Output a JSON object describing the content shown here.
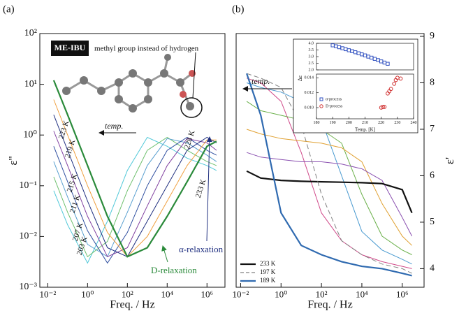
{
  "chart_data": [
    {
      "type": "line",
      "panel_label": "(a)",
      "ylabel": "ε''",
      "xlabel": "Freq. / Hz",
      "log_x": true,
      "log_y": true,
      "xlim": [
        0.004,
        8000000
      ],
      "ylim": [
        0.001,
        100
      ],
      "xticks": [
        {
          "value": 0.01,
          "label": "10⁻²"
        },
        {
          "value": 1,
          "label": "10⁰"
        },
        {
          "value": 100,
          "label": "10²"
        },
        {
          "value": 10000,
          "label": "10⁴"
        },
        {
          "value": 1000000,
          "label": "10⁶"
        }
      ],
      "yticks": [
        {
          "value": 0.001,
          "label": "10⁻³"
        },
        {
          "value": 0.01,
          "label": "10⁻²"
        },
        {
          "value": 0.1,
          "label": "10⁻¹"
        },
        {
          "value": 1,
          "label": "10⁰"
        },
        {
          "value": 10,
          "label": "10¹"
        },
        {
          "value": 100,
          "label": "10²"
        }
      ],
      "x": [
        0.02,
        0.1,
        1,
        10,
        100,
        1000,
        10000,
        100000,
        1000000,
        3000000
      ],
      "series": [
        {
          "name": "203 K",
          "color": "#4fc8d8",
          "values": [
            0.08,
            0.017,
            0.003,
            0.02,
            0.2,
            0.9,
            0.6,
            0.35,
            0.25,
            0.2
          ]
        },
        {
          "name": "207 K",
          "color": "#6fc06f",
          "values": [
            0.15,
            0.03,
            0.004,
            0.008,
            0.08,
            0.5,
            0.9,
            0.5,
            0.3,
            0.25
          ]
        },
        {
          "name": "211 K",
          "color": "#5aa0d0",
          "values": [
            0.3,
            0.06,
            0.007,
            0.004,
            0.03,
            0.25,
            0.85,
            0.7,
            0.4,
            0.3
          ]
        },
        {
          "name": "215 K",
          "color": "#3050a0",
          "values": [
            0.6,
            0.12,
            0.013,
            0.003,
            0.012,
            0.1,
            0.5,
            0.9,
            0.5,
            0.4
          ]
        },
        {
          "name": "219 K",
          "color": "#8040a0",
          "values": [
            1.2,
            0.25,
            0.025,
            0.004,
            0.006,
            0.04,
            0.25,
            0.85,
            0.7,
            0.5
          ]
        },
        {
          "name": "223 K",
          "color": "#203080",
          "values": [
            2.5,
            0.5,
            0.05,
            0.006,
            0.004,
            0.02,
            0.1,
            0.5,
            0.9,
            0.7
          ]
        },
        {
          "name": "228 K",
          "color": "#f0a040",
          "values": [
            5,
            1,
            0.1,
            0.012,
            0.004,
            0.01,
            0.05,
            0.25,
            0.8,
            0.8
          ]
        },
        {
          "name": "233 K",
          "color": "#2a8a3a",
          "thick": true,
          "values": [
            12,
            2.5,
            0.25,
            0.025,
            0.004,
            0.006,
            0.025,
            0.12,
            0.6,
            0.75
          ]
        }
      ],
      "annotations": {
        "sample": "ME-IBU",
        "molecule_note": "methyl group instead of hydrogen",
        "arrow_label": "temp.",
        "alpha": "α-relaxation",
        "d": "D-relaxation"
      }
    },
    {
      "type": "line",
      "panel_label": "(b)",
      "y2label": "ε'",
      "xlabel": "Freq. / Hz",
      "log_x": true,
      "xlim": [
        0.006,
        12000000
      ],
      "y2lim": [
        3.6,
        9.06
      ],
      "y2ticks": [
        4,
        5,
        6,
        7,
        8,
        9
      ],
      "xticks": [
        {
          "value": 0.01,
          "label": "10⁻²"
        },
        {
          "value": 1,
          "label": "10⁰"
        },
        {
          "value": 100,
          "label": "10²"
        },
        {
          "value": 10000,
          "label": "10⁴"
        },
        {
          "value": 1000000,
          "label": "10⁶"
        }
      ],
      "x": [
        0.02,
        0.1,
        1,
        10,
        100,
        1000,
        10000,
        100000,
        1000000,
        3000000
      ],
      "legend": "lower left",
      "arrow_label": "temp.",
      "series": [
        {
          "color": "#d04a8a",
          "axis": "y2",
          "values": [
            8.1,
            8.0,
            7.6,
            6.5,
            5.2,
            4.6,
            4.3,
            4.15,
            4.05,
            4.0
          ]
        },
        {
          "color": "#4a9ad0",
          "axis": "y2",
          "values": [
            8.0,
            7.9,
            7.8,
            7.6,
            7.2,
            6.0,
            4.8,
            4.4,
            4.2,
            4.1
          ]
        },
        {
          "color": "#6ab04a",
          "axis": "y2",
          "values": [
            7.6,
            7.4,
            7.3,
            7.2,
            7.0,
            6.7,
            5.6,
            4.7,
            4.4,
            4.3
          ]
        },
        {
          "color": "#e0a030",
          "axis": "y2",
          "values": [
            7.0,
            6.9,
            6.8,
            6.75,
            6.7,
            6.6,
            6.3,
            5.4,
            4.7,
            4.5
          ]
        },
        {
          "color": "#8a50b0",
          "axis": "y2",
          "values": [
            6.5,
            6.4,
            6.35,
            6.3,
            6.3,
            6.25,
            6.15,
            5.9,
            5.1,
            4.7
          ]
        },
        {
          "name": "233 K",
          "color": "#111111",
          "axis": "y2",
          "thick": true,
          "values": [
            6.1,
            5.95,
            5.9,
            5.88,
            5.87,
            5.86,
            5.85,
            5.83,
            5.7,
            5.2
          ]
        },
        {
          "name": "197 K",
          "color": "#808080",
          "axis": "y2",
          "dash": true,
          "values": [
            8.2,
            8.1,
            7.9,
            7.1,
            5.6,
            4.6,
            4.3,
            4.1,
            4.0,
            3.9
          ]
        },
        {
          "name": "189 K",
          "color": "#2f6ab0",
          "axis": "y2",
          "thick": true,
          "values": [
            8.2,
            7.3,
            5.2,
            4.5,
            4.3,
            4.15,
            4.05,
            4.0,
            3.9,
            3.85
          ]
        }
      ]
    },
    {
      "type": "scatter",
      "ylabel": "Δε",
      "xlim": [
        180,
        240
      ],
      "ylim": [
        2.0,
        4.0
      ],
      "yticks": [
        {
          "value": 2,
          "label": "2.0"
        },
        2.5,
        {
          "value": 3,
          "label": "3.0"
        },
        3.5,
        {
          "value": 4,
          "label": "4.0"
        }
      ],
      "series": [
        {
          "name": "α-process",
          "color": "#3050c0",
          "marker": "square",
          "x": [
            190,
            192,
            194,
            196,
            198,
            200,
            202,
            204,
            206,
            208,
            210,
            212,
            214,
            216,
            218,
            220,
            222,
            224
          ],
          "values": [
            3.85,
            3.78,
            3.71,
            3.63,
            3.56,
            3.48,
            3.41,
            3.33,
            3.25,
            3.17,
            3.09,
            3.0,
            2.92,
            2.83,
            2.74,
            2.64,
            2.55,
            2.46
          ]
        }
      ]
    },
    {
      "type": "scatter",
      "xlabel": "Temp. [K]",
      "xlim": [
        180,
        240
      ],
      "ylim": [
        0.0085,
        0.0145
      ],
      "xticks": [
        180,
        190,
        200,
        210,
        220,
        230,
        240
      ],
      "yticks": [
        {
          "value": 0.01,
          "label": "0.010"
        },
        {
          "value": 0.012,
          "label": "0.012"
        },
        {
          "value": 0.014,
          "label": "0.014"
        }
      ],
      "series": [
        {
          "name": "D-process",
          "color": "#d03030",
          "marker": "circle",
          "x": [
            220,
            221,
            222,
            224,
            225,
            226,
            228,
            229,
            230,
            232
          ],
          "values": [
            0.01,
            0.0101,
            0.0101,
            0.0119,
            0.0122,
            0.0125,
            0.0132,
            0.0137,
            0.014,
            0.0139
          ]
        }
      ]
    }
  ]
}
